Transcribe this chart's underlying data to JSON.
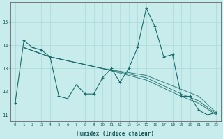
{
  "title": "",
  "xlabel": "Humidex (Indice chaleur)",
  "ylabel": "",
  "background_color": "#c8ecec",
  "grid_color": "#a8d8d8",
  "line_color": "#1a6b6b",
  "xlim": [
    -0.5,
    23.5
  ],
  "ylim": [
    10.75,
    15.85
  ],
  "yticks": [
    11,
    12,
    13,
    14,
    15
  ],
  "xticks": [
    0,
    1,
    2,
    3,
    4,
    5,
    6,
    7,
    8,
    9,
    10,
    11,
    12,
    13,
    14,
    15,
    16,
    17,
    18,
    19,
    20,
    21,
    22,
    23
  ],
  "series": [
    [
      0,
      11.5
    ],
    [
      1,
      14.2
    ],
    [
      2,
      13.9
    ],
    [
      3,
      13.8
    ],
    [
      4,
      13.5
    ],
    [
      5,
      11.8
    ],
    [
      6,
      11.7
    ],
    [
      7,
      12.3
    ],
    [
      8,
      11.9
    ],
    [
      9,
      11.9
    ],
    [
      10,
      12.6
    ],
    [
      11,
      13.0
    ],
    [
      12,
      12.4
    ],
    [
      13,
      13.0
    ],
    [
      14,
      13.9
    ],
    [
      15,
      15.6
    ],
    [
      16,
      14.8
    ],
    [
      17,
      13.5
    ],
    [
      18,
      13.6
    ],
    [
      19,
      11.8
    ],
    [
      20,
      11.8
    ],
    [
      21,
      11.2
    ],
    [
      22,
      11.0
    ],
    [
      23,
      11.1
    ]
  ],
  "trend_lines": [
    [
      [
        1,
        13.9
      ],
      [
        4,
        13.5
      ],
      [
        10,
        13.0
      ],
      [
        15,
        12.7
      ],
      [
        19,
        12.1
      ],
      [
        21,
        11.8
      ],
      [
        23,
        11.1
      ]
    ],
    [
      [
        1,
        13.9
      ],
      [
        4,
        13.5
      ],
      [
        10,
        13.0
      ],
      [
        15,
        12.6
      ],
      [
        19,
        11.9
      ],
      [
        21,
        11.6
      ],
      [
        23,
        11.05
      ]
    ],
    [
      [
        1,
        13.9
      ],
      [
        4,
        13.5
      ],
      [
        10,
        13.0
      ],
      [
        15,
        12.5
      ],
      [
        19,
        11.8
      ],
      [
        21,
        11.5
      ],
      [
        23,
        11.0
      ]
    ]
  ]
}
